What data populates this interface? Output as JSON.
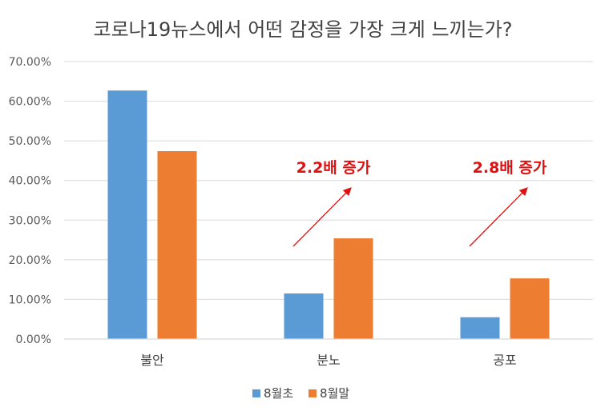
{
  "chart_data": {
    "type": "bar",
    "title": "코로나19뉴스에서 어떤 감정을 가장 크게 느끼는가?",
    "categories": [
      "불안",
      "분노",
      "공포"
    ],
    "series": [
      {
        "name": "8월초",
        "values": [
          0.627,
          0.115,
          0.055
        ],
        "color": "#5b9bd5"
      },
      {
        "name": "8월말",
        "values": [
          0.474,
          0.254,
          0.153
        ],
        "color": "#ed7d31"
      }
    ],
    "ylim": [
      0,
      0.7
    ],
    "yticks": [
      "0.00%",
      "10.00%",
      "20.00%",
      "30.00%",
      "40.00%",
      "50.00%",
      "60.00%",
      "70.00%"
    ],
    "grid": true,
    "legend": "bottom",
    "annotations": [
      {
        "category": "분노",
        "text": "2.2배 증가",
        "color": "#e01010"
      },
      {
        "category": "공포",
        "text": "2.8배 증가",
        "color": "#e01010"
      }
    ]
  }
}
